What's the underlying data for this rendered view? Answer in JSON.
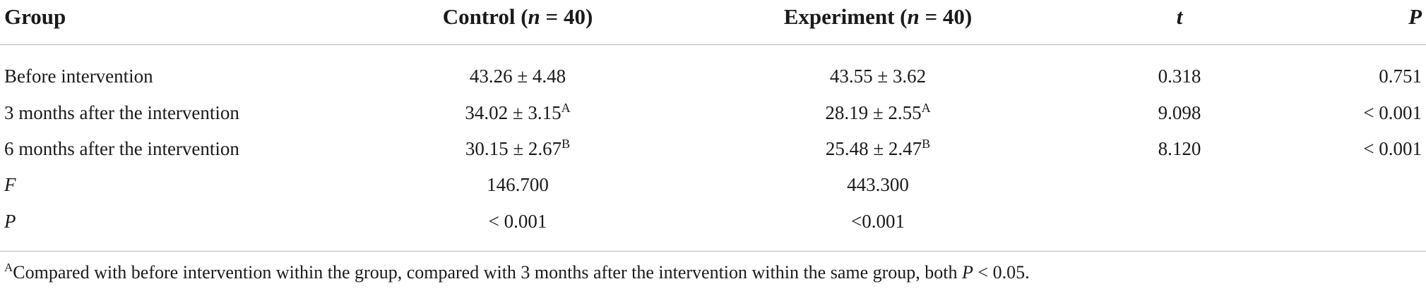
{
  "header": {
    "group": "Group",
    "control_label": "Control (",
    "control_n": "n",
    "control_tail": " = 40)",
    "experiment_label": "Experiment (",
    "experiment_n": "n",
    "experiment_tail": " = 40)",
    "t": "t",
    "p": "P"
  },
  "rows": [
    {
      "group": "Before intervention",
      "control": "43.26 ± 4.48",
      "control_sup": "",
      "experiment": "43.55 ± 3.62",
      "experiment_sup": "",
      "t": "0.318",
      "p": "0.751"
    },
    {
      "group": "3 months after the intervention",
      "control": "34.02 ± 3.15",
      "control_sup": "A",
      "experiment": "28.19 ± 2.55",
      "experiment_sup": "A",
      "t": "9.098",
      "p": "< 0.001"
    },
    {
      "group": "6 months after the intervention",
      "control": "30.15 ± 2.67",
      "control_sup": "B",
      "experiment": "25.48 ± 2.47",
      "experiment_sup": "B",
      "t": "8.120",
      "p": "< 0.001"
    },
    {
      "group": "F",
      "control": "146.700",
      "experiment": "443.300"
    },
    {
      "group": "P",
      "control": "< 0.001",
      "experiment": "<0.001"
    }
  ],
  "footnote": {
    "marker": "A",
    "text": "Compared with before intervention within the group, compared with 3 months after the intervention within the same group, both ",
    "p_symbol": "P",
    "tail": " < 0.05."
  }
}
